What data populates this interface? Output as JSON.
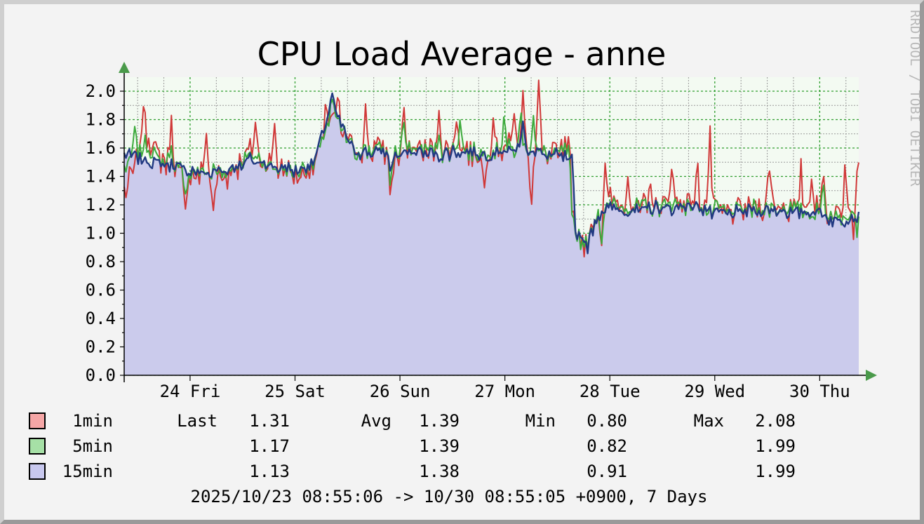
{
  "chart_data": {
    "type": "area",
    "title": "CPU Load Average - anne",
    "watermark": "RRDTOOL / TOBI OETIKER",
    "time_range": "2025/10/23 08:55:06 -> 10/30 08:55:05 +0900, 7 Days",
    "ylim": [
      0,
      2.0
    ],
    "y_ticks": [
      "0.0",
      "0.2",
      "0.4",
      "0.6",
      "0.8",
      "1.0",
      "1.2",
      "1.4",
      "1.6",
      "1.8",
      "2.0"
    ],
    "x_range_days": [
      0,
      7
    ],
    "x_ticks": [
      {
        "day": 0.628,
        "label": "24 Fri"
      },
      {
        "day": 1.628,
        "label": "25 Sat"
      },
      {
        "day": 2.628,
        "label": "26 Sun"
      },
      {
        "day": 3.628,
        "label": "27 Mon"
      },
      {
        "day": 4.628,
        "label": "28 Tue"
      },
      {
        "day": 5.628,
        "label": "29 Wed"
      },
      {
        "day": 6.628,
        "label": "30 Thu"
      }
    ],
    "grid": true,
    "colors": {
      "background": "#f3f3f3",
      "plot_area": "#f3faf2",
      "major_grid": "#2e9e2e",
      "minor_grid": "#9a9a9a",
      "axis": "#000000",
      "arrow": "#4a9a4a",
      "area_fill": "#cbcbec",
      "text": "#000000",
      "watermark": "#b8b8b8"
    },
    "legend_header": {
      "last": "Last",
      "avg": "Avg",
      "min": "Min",
      "max": "Max"
    },
    "series": [
      {
        "name": "1min",
        "line_color": "#d03838",
        "swatch_color": "#f5a6a6",
        "last": "1.31",
        "avg": "1.39",
        "min": "0.80",
        "max": "2.08",
        "anchors": [
          [
            0,
            1.28
          ],
          [
            0.2,
            1.68
          ],
          [
            0.35,
            1.52
          ],
          [
            0.6,
            1.42
          ],
          [
            0.8,
            1.4
          ],
          [
            1.0,
            1.42
          ],
          [
            1.2,
            1.56
          ],
          [
            1.4,
            1.47
          ],
          [
            1.6,
            1.42
          ],
          [
            1.8,
            1.46
          ],
          [
            1.98,
            1.82
          ],
          [
            2.2,
            1.56
          ],
          [
            2.4,
            1.6
          ],
          [
            2.6,
            1.55
          ],
          [
            2.8,
            1.6
          ],
          [
            3.0,
            1.56
          ],
          [
            3.2,
            1.6
          ],
          [
            3.4,
            1.55
          ],
          [
            3.6,
            1.6
          ],
          [
            3.8,
            1.58
          ],
          [
            4.0,
            1.54
          ],
          [
            4.15,
            1.55
          ],
          [
            4.27,
            1.62
          ],
          [
            4.3,
            1.08
          ],
          [
            4.35,
            0.92
          ],
          [
            4.42,
            0.95
          ],
          [
            4.5,
            1.15
          ],
          [
            4.6,
            1.22
          ],
          [
            4.8,
            1.18
          ],
          [
            5.0,
            1.18
          ],
          [
            5.2,
            1.2
          ],
          [
            5.4,
            1.22
          ],
          [
            5.6,
            1.18
          ],
          [
            5.8,
            1.16
          ],
          [
            6.0,
            1.18
          ],
          [
            6.2,
            1.2
          ],
          [
            6.4,
            1.18
          ],
          [
            6.6,
            1.16
          ],
          [
            6.8,
            1.12
          ],
          [
            7.0,
            1.3
          ]
        ],
        "spikes": [
          [
            0.18,
            0.25
          ],
          [
            0.45,
            0.32
          ],
          [
            0.58,
            -0.3
          ],
          [
            0.78,
            0.3
          ],
          [
            0.85,
            -0.25
          ],
          [
            1.25,
            0.28
          ],
          [
            1.43,
            0.3
          ],
          [
            1.92,
            0.22
          ],
          [
            2.04,
            0.18
          ],
          [
            2.3,
            0.3
          ],
          [
            2.54,
            -0.32
          ],
          [
            2.66,
            0.32
          ],
          [
            3.0,
            0.32
          ],
          [
            3.17,
            0.25
          ],
          [
            3.43,
            -0.25
          ],
          [
            3.52,
            0.28
          ],
          [
            3.72,
            0.32
          ],
          [
            3.8,
            0.5
          ],
          [
            3.88,
            -0.3
          ],
          [
            3.95,
            0.5
          ],
          [
            4.09,
            0.12
          ],
          [
            4.27,
            -0.55
          ],
          [
            4.55,
            -0.25
          ],
          [
            4.58,
            0.3
          ],
          [
            4.8,
            0.26
          ],
          [
            5.02,
            0.22
          ],
          [
            5.22,
            0.3
          ],
          [
            5.46,
            0.25
          ],
          [
            5.58,
            0.5
          ],
          [
            6.15,
            0.28
          ],
          [
            6.45,
            0.3
          ],
          [
            6.55,
            0.28
          ],
          [
            6.66,
            0.3
          ],
          [
            6.87,
            0.36
          ],
          [
            6.95,
            -0.2
          ],
          [
            6.99,
            0.24
          ]
        ],
        "noise": 0.12
      },
      {
        "name": "5min",
        "line_color": "#3caa3c",
        "swatch_color": "#a6e0a6",
        "last": "1.17",
        "avg": "1.39",
        "min": "0.82",
        "max": "1.99",
        "anchors": [
          [
            0,
            1.45
          ],
          [
            0.2,
            1.62
          ],
          [
            0.35,
            1.52
          ],
          [
            0.6,
            1.44
          ],
          [
            0.8,
            1.42
          ],
          [
            1.0,
            1.44
          ],
          [
            1.2,
            1.55
          ],
          [
            1.4,
            1.48
          ],
          [
            1.6,
            1.44
          ],
          [
            1.8,
            1.47
          ],
          [
            1.98,
            1.85
          ],
          [
            2.2,
            1.56
          ],
          [
            2.4,
            1.6
          ],
          [
            2.6,
            1.55
          ],
          [
            2.8,
            1.6
          ],
          [
            3.0,
            1.56
          ],
          [
            3.2,
            1.6
          ],
          [
            3.4,
            1.55
          ],
          [
            3.6,
            1.6
          ],
          [
            3.8,
            1.58
          ],
          [
            4.0,
            1.56
          ],
          [
            4.15,
            1.56
          ],
          [
            4.27,
            1.58
          ],
          [
            4.3,
            1.05
          ],
          [
            4.35,
            0.94
          ],
          [
            4.42,
            0.93
          ],
          [
            4.5,
            1.14
          ],
          [
            4.6,
            1.2
          ],
          [
            4.8,
            1.18
          ],
          [
            5.0,
            1.18
          ],
          [
            5.2,
            1.2
          ],
          [
            5.4,
            1.2
          ],
          [
            5.6,
            1.16
          ],
          [
            5.8,
            1.15
          ],
          [
            6.0,
            1.17
          ],
          [
            6.2,
            1.18
          ],
          [
            6.4,
            1.16
          ],
          [
            6.6,
            1.15
          ],
          [
            6.8,
            1.1
          ],
          [
            7.0,
            1.17
          ]
        ],
        "spikes": [
          [
            0.1,
            0.2
          ],
          [
            0.45,
            0.12
          ],
          [
            0.58,
            -0.22
          ],
          [
            1.98,
            0.1
          ],
          [
            2.54,
            -0.22
          ],
          [
            2.66,
            0.25
          ],
          [
            3.0,
            0.15
          ],
          [
            3.2,
            0.2
          ],
          [
            3.62,
            0.22
          ],
          [
            3.78,
            0.3
          ],
          [
            3.9,
            0.3
          ],
          [
            4.27,
            -0.5
          ],
          [
            4.55,
            -0.2
          ],
          [
            6.66,
            0.25
          ],
          [
            6.99,
            -0.15
          ]
        ],
        "noise": 0.08
      },
      {
        "name": "15min",
        "line_color": "#223a82",
        "swatch_color": "#c8c8ee",
        "last": "1.13",
        "avg": "1.38",
        "min": "0.91",
        "max": "1.99",
        "anchors": [
          [
            0,
            1.55
          ],
          [
            0.2,
            1.52
          ],
          [
            0.35,
            1.5
          ],
          [
            0.6,
            1.44
          ],
          [
            0.8,
            1.42
          ],
          [
            1.0,
            1.45
          ],
          [
            1.2,
            1.52
          ],
          [
            1.4,
            1.48
          ],
          [
            1.6,
            1.44
          ],
          [
            1.8,
            1.48
          ],
          [
            1.98,
            1.9
          ],
          [
            2.2,
            1.56
          ],
          [
            2.4,
            1.58
          ],
          [
            2.6,
            1.55
          ],
          [
            2.8,
            1.58
          ],
          [
            3.0,
            1.55
          ],
          [
            3.2,
            1.58
          ],
          [
            3.4,
            1.55
          ],
          [
            3.6,
            1.58
          ],
          [
            3.8,
            1.6
          ],
          [
            4.0,
            1.55
          ],
          [
            4.15,
            1.55
          ],
          [
            4.27,
            1.5
          ],
          [
            4.3,
            1.0
          ],
          [
            4.35,
            0.98
          ],
          [
            4.42,
            0.92
          ],
          [
            4.5,
            1.12
          ],
          [
            4.6,
            1.18
          ],
          [
            4.8,
            1.16
          ],
          [
            5.0,
            1.18
          ],
          [
            5.2,
            1.18
          ],
          [
            5.4,
            1.2
          ],
          [
            5.6,
            1.14
          ],
          [
            5.8,
            1.14
          ],
          [
            6.0,
            1.16
          ],
          [
            6.2,
            1.16
          ],
          [
            6.4,
            1.15
          ],
          [
            6.6,
            1.15
          ],
          [
            6.8,
            1.08
          ],
          [
            7.0,
            1.13
          ]
        ],
        "spikes": [
          [
            1.98,
            0.08
          ],
          [
            2.54,
            -0.12
          ],
          [
            3.8,
            0.2
          ],
          [
            4.42,
            -0.02
          ]
        ],
        "noise": 0.06
      }
    ]
  }
}
